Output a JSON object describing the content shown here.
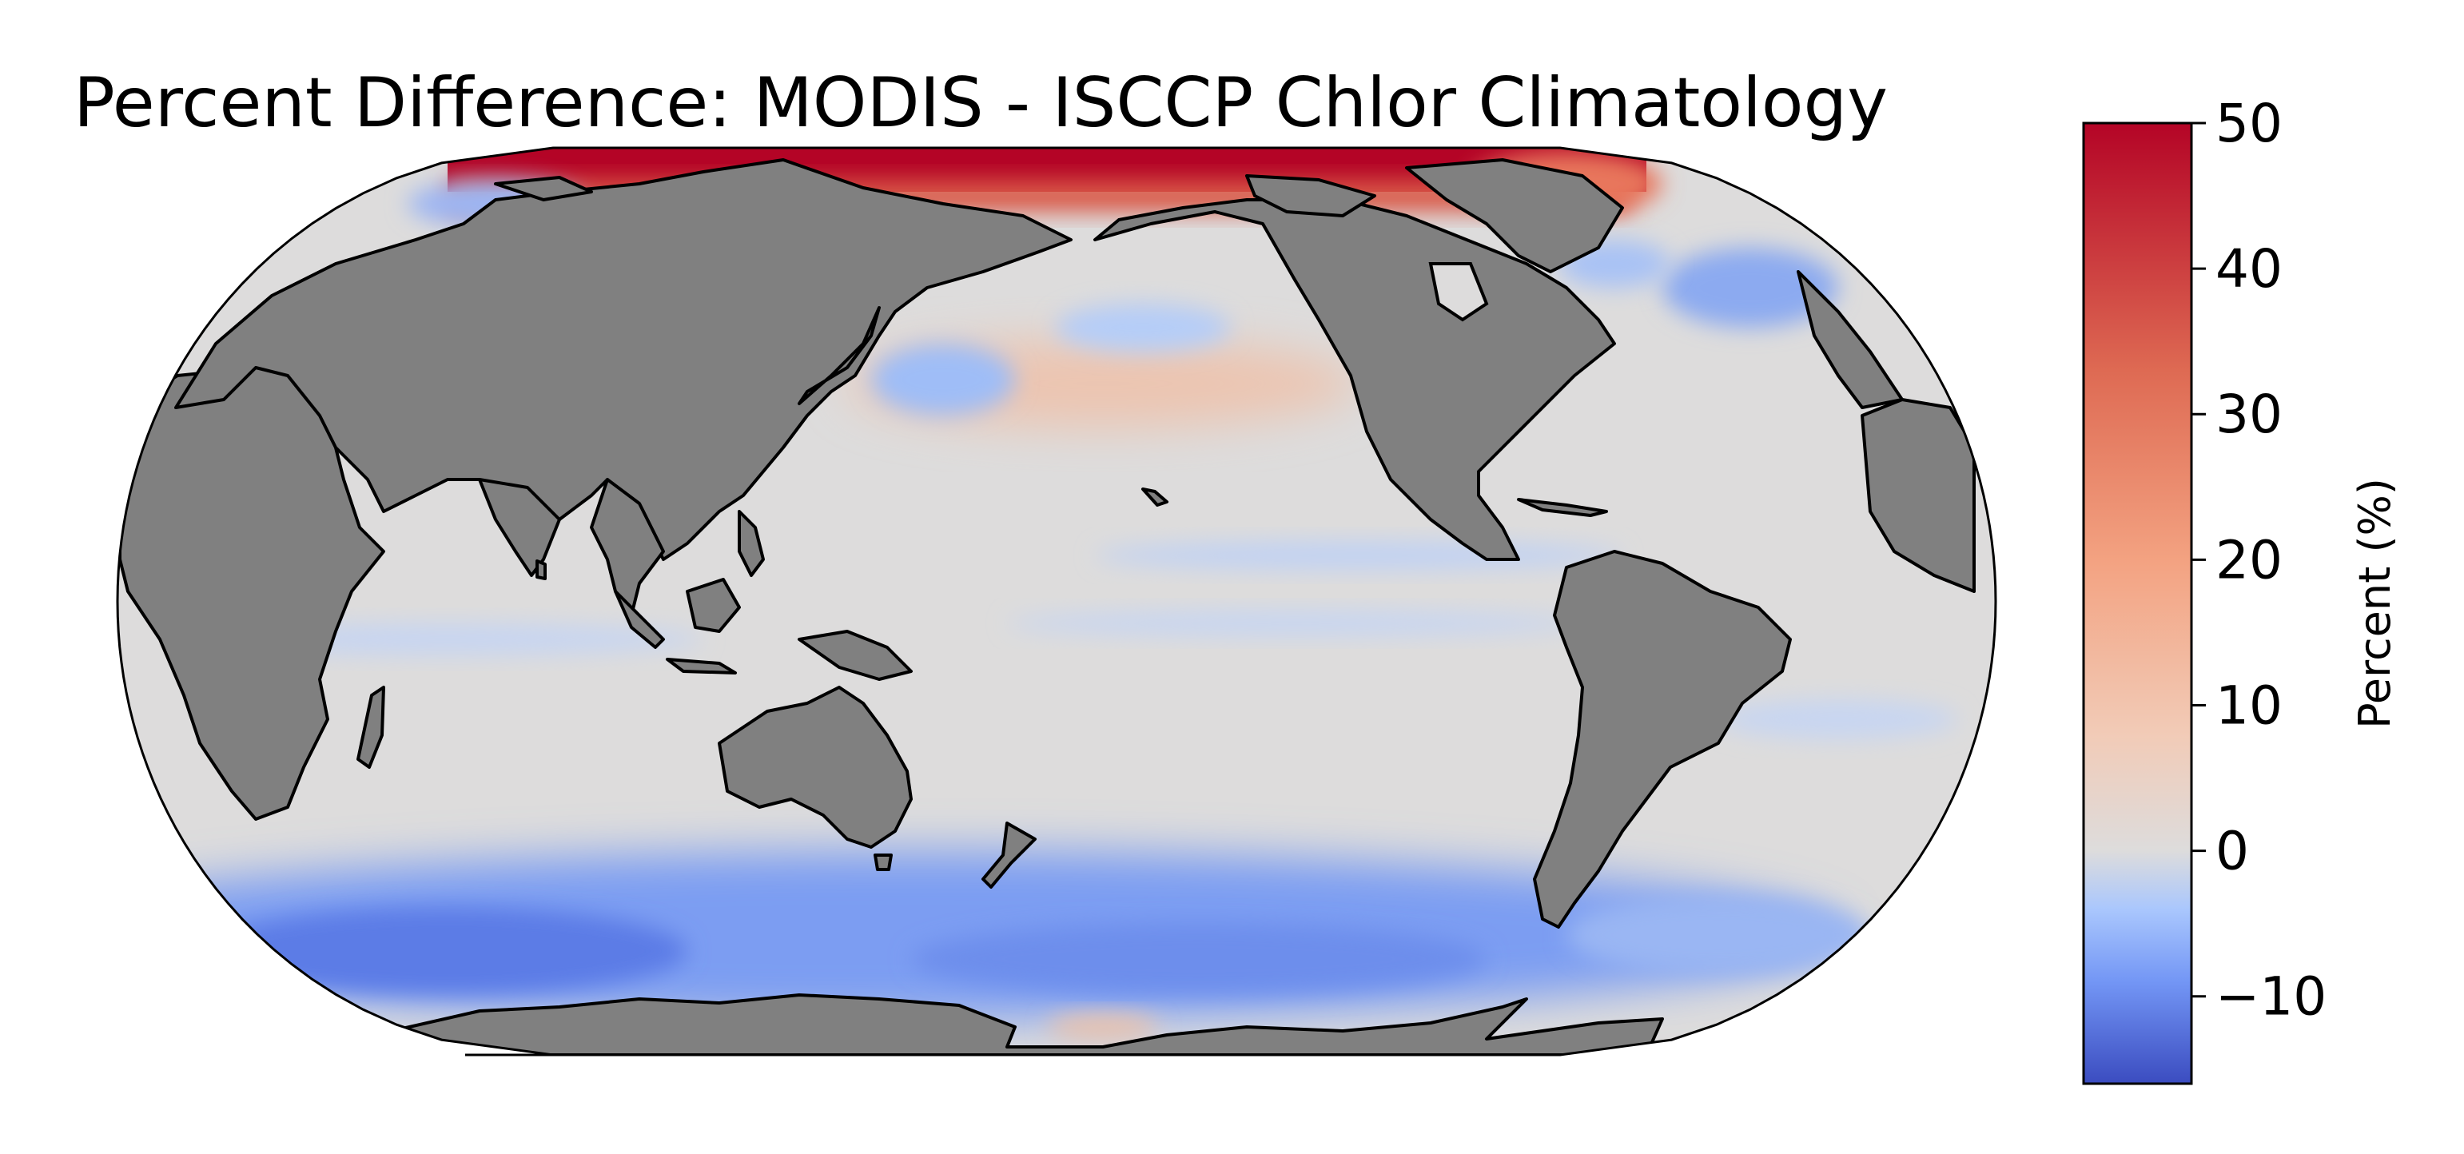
{
  "figure": {
    "title": "Percent Difference: MODIS - ISCCP Chlor Climatology"
  },
  "map": {
    "projection": "robinson",
    "central_longitude": 180,
    "land_color": "#808080",
    "coastline_color": "#000000"
  },
  "colorbar": {
    "label": "Percent (%)",
    "colormap": "coolwarm",
    "min": -16,
    "max": 50,
    "ticks": [
      {
        "value": 50,
        "label": "50"
      },
      {
        "value": 40,
        "label": "40"
      },
      {
        "value": 30,
        "label": "30"
      },
      {
        "value": 20,
        "label": "20"
      },
      {
        "value": 10,
        "label": "10"
      },
      {
        "value": 0,
        "label": "0"
      },
      {
        "value": -10,
        "label": "−10"
      }
    ],
    "stops": [
      {
        "value": -16,
        "color": "#3b4cc0"
      },
      {
        "value": -9,
        "color": "#7396f5"
      },
      {
        "value": -4,
        "color": "#aac7fd"
      },
      {
        "value": 0,
        "color": "#dddcdc"
      },
      {
        "value": 8,
        "color": "#f2cbb7"
      },
      {
        "value": 20,
        "color": "#f3a281"
      },
      {
        "value": 33,
        "color": "#de6a53"
      },
      {
        "value": 50,
        "color": "#b40426"
      }
    ]
  },
  "chart_data": {
    "type": "heatmap",
    "title": "Percent Difference: MODIS - ISCCP Chlor Climatology",
    "colorbar_label": "Percent (%)",
    "value_range": [
      -16,
      50
    ],
    "colorbar_ticks": [
      -10,
      0,
      10,
      20,
      30,
      40,
      50
    ],
    "regions": [
      {
        "region": "Arctic Ocean",
        "value": 50
      },
      {
        "region": "Canadian Arctic Archipelago",
        "value": 40
      },
      {
        "region": "North Pacific mid-latitudes",
        "value": 4
      },
      {
        "region": "Northwest Pacific off Japan",
        "value": -7
      },
      {
        "region": "North Atlantic subpolar",
        "value": -8
      },
      {
        "region": "Tropical Pacific",
        "value": -1
      },
      {
        "region": "Indian Ocean",
        "value": -1
      },
      {
        "region": "Southern Ocean",
        "value": -12
      }
    ]
  }
}
